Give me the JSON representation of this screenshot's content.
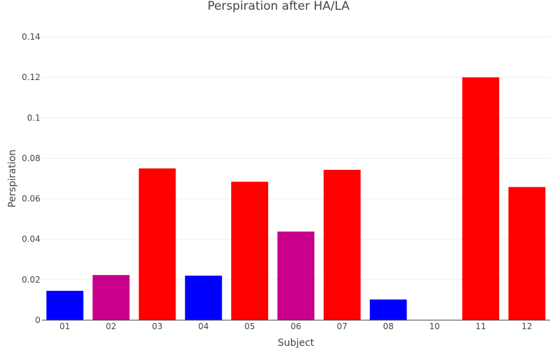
{
  "chart_data": {
    "type": "bar",
    "title": "Perspiration after HA/LA",
    "xlabel": "Subject",
    "ylabel": "Perspiration",
    "categories": [
      "01",
      "02",
      "03",
      "04",
      "05",
      "06",
      "07",
      "08",
      "10",
      "11",
      "12"
    ],
    "values": [
      0.0145,
      0.0223,
      0.075,
      0.022,
      0.0684,
      0.0438,
      0.0743,
      0.0102,
      0,
      0.12,
      0.0658
    ],
    "bar_colors": [
      "#0000ff",
      "#c8008a",
      "#ff0000",
      "#0000ff",
      "#ff0000",
      "#c8008a",
      "#ff0000",
      "#0000ff",
      "#0000ff",
      "#ff0000",
      "#ff0000"
    ],
    "ylim": [
      0,
      0.14
    ],
    "yticks": [
      0,
      0.02,
      0.04,
      0.06,
      0.08,
      0.1,
      0.12,
      0.14
    ],
    "ytick_labels": [
      "0",
      "0.02",
      "0.04",
      "0.06",
      "0.08",
      "0.1",
      "0.12",
      "0.14"
    ],
    "grid": true,
    "legend": "none"
  }
}
